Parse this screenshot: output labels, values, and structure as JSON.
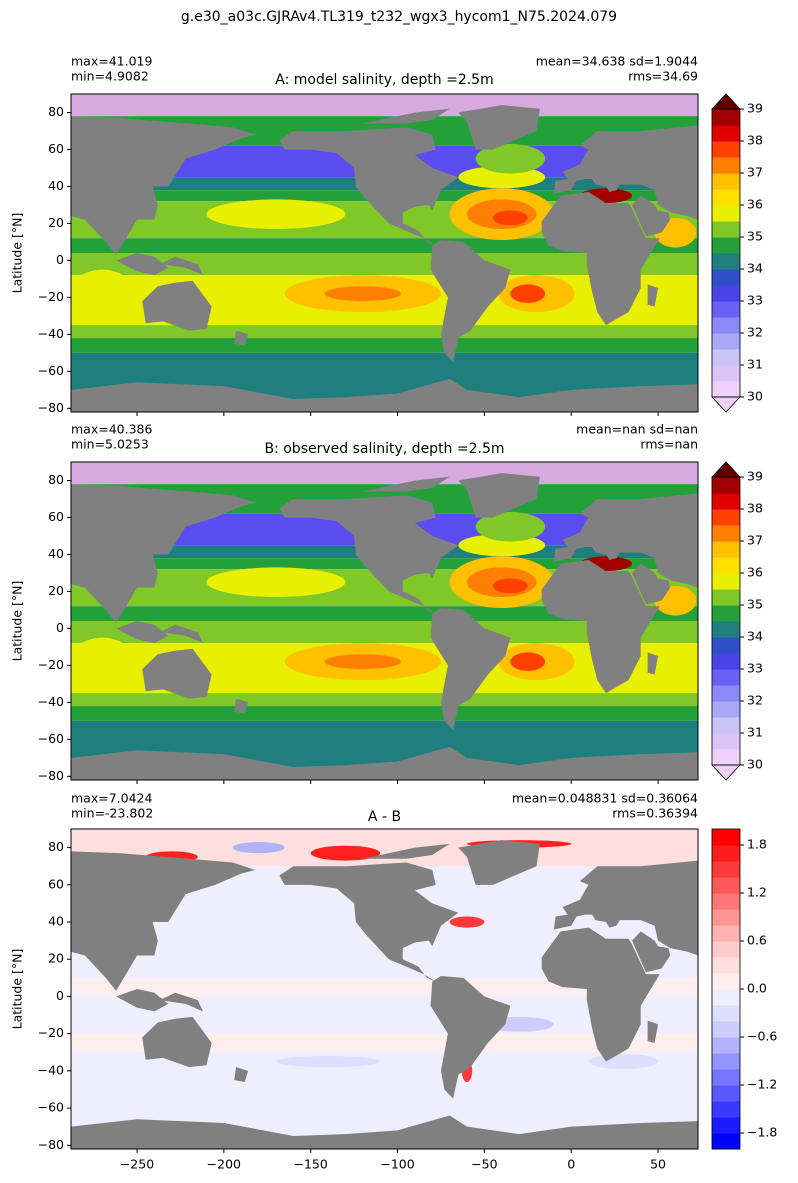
{
  "title": "g.e30_a03c.GJRAv4.TL319_t232_wgx3_hycom1_N75.2024.079",
  "chart_data": [
    {
      "type": "map",
      "title": "A: model salinity, depth =2.5m",
      "ylabel": "Latitude [°N]",
      "stats_left": [
        "max=41.019",
        "min=4.9082"
      ],
      "stats_right": [
        "mean=34.638 sd=1.9044",
        "rms=34.69"
      ],
      "xlim": [
        -288,
        73
      ],
      "ylim": [
        -82,
        90
      ],
      "yticks": [
        80,
        60,
        40,
        20,
        0,
        {
          "value": -20,
          "label": "−20"
        },
        {
          "value": -40,
          "label": "−40"
        },
        {
          "value": -60,
          "label": "−60"
        },
        {
          "value": -80,
          "label": "−80"
        }
      ],
      "colorbar": {
        "lim": [
          30,
          39
        ],
        "ticks": [
          30,
          31,
          32,
          33,
          34,
          35,
          36,
          37,
          38,
          39
        ],
        "colors": [
          "#f0d0f8",
          "#dcc4f8",
          "#c8c4f8",
          "#a8a8f8",
          "#8c88f8",
          "#6a60f4",
          "#4a44e8",
          "#3050c8",
          "#1f7f7f",
          "#23a03a",
          "#80c828",
          "#e8f000",
          "#ffe000",
          "#ffc000",
          "#ff8000",
          "#ff4000",
          "#e00000",
          "#a00000"
        ],
        "under_color": "#f0d0f8",
        "over_color": "#600000"
      }
    },
    {
      "type": "map",
      "title": "B: observed salinity, depth =2.5m",
      "ylabel": "Latitude [°N]",
      "stats_left": [
        "max=40.386",
        "min=5.0253"
      ],
      "stats_right": [
        "mean=nan sd=nan",
        "rms=nan"
      ],
      "xlim": [
        -288,
        73
      ],
      "ylim": [
        -82,
        90
      ],
      "yticks": [
        80,
        60,
        40,
        20,
        0,
        {
          "value": -20,
          "label": "−20"
        },
        {
          "value": -40,
          "label": "−40"
        },
        {
          "value": -60,
          "label": "−60"
        },
        {
          "value": -80,
          "label": "−80"
        }
      ],
      "colorbar": {
        "lim": [
          30,
          39
        ],
        "ticks": [
          30,
          31,
          32,
          33,
          34,
          35,
          36,
          37,
          38,
          39
        ],
        "colors": [
          "#f0d0f8",
          "#dcc4f8",
          "#c8c4f8",
          "#a8a8f8",
          "#8c88f8",
          "#6a60f4",
          "#4a44e8",
          "#3050c8",
          "#1f7f7f",
          "#23a03a",
          "#80c828",
          "#e8f000",
          "#ffe000",
          "#ffc000",
          "#ff8000",
          "#ff4000",
          "#e00000",
          "#a00000"
        ],
        "under_color": "#f0d0f8",
        "over_color": "#600000"
      }
    },
    {
      "type": "map",
      "title": "A - B",
      "ylabel": "Latitude [°N]",
      "stats_left": [
        "max=7.0424",
        "min=-23.802"
      ],
      "stats_right": [
        "mean=0.048831 sd=0.36064",
        "rms=0.36394"
      ],
      "xlim": [
        -288,
        73
      ],
      "ylim": [
        -82,
        90
      ],
      "xticks": [
        {
          "value": -250,
          "label": "−250"
        },
        {
          "value": -200,
          "label": "−200"
        },
        {
          "value": -150,
          "label": "−150"
        },
        {
          "value": -100,
          "label": "−100"
        },
        {
          "value": -50,
          "label": "−50"
        },
        0,
        50
      ],
      "yticks": [
        80,
        60,
        40,
        20,
        0,
        {
          "value": -20,
          "label": "−20"
        },
        {
          "value": -40,
          "label": "−40"
        },
        {
          "value": -60,
          "label": "−60"
        },
        {
          "value": -80,
          "label": "−80"
        }
      ],
      "colorbar": {
        "lim": [
          -2,
          2
        ],
        "ticks": [
          {
            "value": -1.8,
            "label": "−1.8"
          },
          {
            "value": -1.2,
            "label": "−1.2"
          },
          {
            "value": -0.6,
            "label": "−0.6"
          },
          {
            "value": 0,
            "label": "0.0"
          },
          0.6,
          1.2,
          1.8
        ],
        "colors": [
          "#0000ff",
          "#1c1cff",
          "#3a3aff",
          "#5858ff",
          "#7676ff",
          "#9494ff",
          "#b2b2ff",
          "#ccccff",
          "#dedeff",
          "#eeeeff",
          "#ffeeee",
          "#ffdede",
          "#ffcccc",
          "#ffb2b2",
          "#ff9494",
          "#ff7676",
          "#ff5858",
          "#ff3a3a",
          "#ff1c1c",
          "#ff0000"
        ]
      }
    }
  ]
}
